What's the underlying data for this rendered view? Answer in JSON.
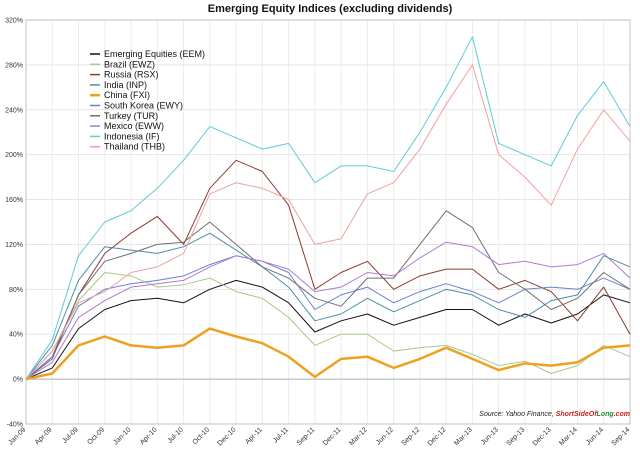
{
  "chart_data": {
    "type": "line",
    "title": "Emerging Equity Indices (excluding dividends)",
    "xlabel": "",
    "ylabel": "",
    "ylim": [
      -40,
      320
    ],
    "yticks": [
      -40,
      0,
      40,
      80,
      120,
      160,
      200,
      240,
      280,
      320
    ],
    "ytick_labels": [
      "-40%",
      "0%",
      "40%",
      "80%",
      "120%",
      "160%",
      "200%",
      "240%",
      "280%",
      "320%"
    ],
    "categories": [
      "Jan-09",
      "Apr-09",
      "Jul-09",
      "Oct-09",
      "Jan-10",
      "Apr-10",
      "Jul-10",
      "Oct-10",
      "Dec-10",
      "Apr-11",
      "Jul-11",
      "Sep-11",
      "Dec-11",
      "Mar-12",
      "Jun-12",
      "Sep-12",
      "Dec-12",
      "Mar-13",
      "Jun-13",
      "Sep-13",
      "Dec-13",
      "Mar-14",
      "Jun-14",
      "Sep-14"
    ],
    "grid": true,
    "legend_position": "top-left",
    "series": [
      {
        "name": "Emerging Equities (EEM)",
        "color": "#111111",
        "width": 1,
        "values": [
          0,
          10,
          45,
          62,
          70,
          72,
          68,
          80,
          88,
          82,
          68,
          42,
          52,
          58,
          48,
          55,
          62,
          62,
          48,
          58,
          50,
          58,
          75,
          68
        ]
      },
      {
        "name": "Brazil (EWZ)",
        "color": "#a8c98a",
        "width": 1,
        "values": [
          0,
          25,
          70,
          95,
          92,
          82,
          84,
          90,
          78,
          72,
          55,
          30,
          40,
          40,
          25,
          28,
          30,
          22,
          12,
          16,
          5,
          12,
          30,
          20
        ]
      },
      {
        "name": "Russia (RSX)",
        "color": "#8b3a2f",
        "width": 1,
        "values": [
          0,
          20,
          75,
          112,
          130,
          145,
          120,
          170,
          195,
          185,
          155,
          80,
          95,
          105,
          80,
          92,
          98,
          98,
          80,
          88,
          78,
          52,
          82,
          40
        ]
      },
      {
        "name": "India (INP)",
        "color": "#4a90a8",
        "width": 1,
        "values": [
          0,
          30,
          88,
          118,
          115,
          112,
          118,
          130,
          115,
          100,
          82,
          52,
          58,
          72,
          60,
          70,
          80,
          75,
          62,
          55,
          70,
          75,
          110,
          100
        ]
      },
      {
        "name": "China (FXI)",
        "color": "#f0a020",
        "width": 2.5,
        "values": [
          0,
          5,
          30,
          38,
          30,
          28,
          30,
          45,
          38,
          32,
          20,
          2,
          18,
          20,
          10,
          18,
          28,
          18,
          8,
          14,
          12,
          15,
          28,
          30
        ]
      },
      {
        "name": "South Korea (EWY)",
        "color": "#6a7fd0",
        "width": 1,
        "values": [
          0,
          20,
          65,
          80,
          85,
          88,
          92,
          102,
          110,
          105,
          95,
          62,
          75,
          82,
          68,
          78,
          85,
          78,
          68,
          80,
          82,
          80,
          90,
          80
        ]
      },
      {
        "name": "Turkey (TUR)",
        "color": "#707070",
        "width": 1,
        "values": [
          0,
          18,
          75,
          105,
          112,
          120,
          122,
          140,
          120,
          100,
          90,
          72,
          65,
          90,
          90,
          120,
          150,
          135,
          95,
          80,
          62,
          72,
          95,
          80
        ]
      },
      {
        "name": "Mexico (EWW)",
        "color": "#b07ad0",
        "width": 1,
        "values": [
          0,
          15,
          55,
          70,
          82,
          85,
          88,
          100,
          110,
          105,
          98,
          78,
          82,
          95,
          92,
          108,
          122,
          118,
          102,
          105,
          100,
          102,
          112,
          90
        ]
      },
      {
        "name": "Indonesia (IF)",
        "color": "#5ecbd8",
        "width": 1,
        "values": [
          0,
          35,
          110,
          140,
          150,
          170,
          195,
          225,
          215,
          205,
          210,
          175,
          190,
          190,
          185,
          220,
          260,
          305,
          210,
          200,
          190,
          235,
          265,
          225
        ]
      },
      {
        "name": "Thailand (THB)",
        "color": "#f0a0a0",
        "width": 1,
        "values": [
          0,
          25,
          68,
          78,
          95,
          100,
          112,
          165,
          175,
          170,
          160,
          120,
          125,
          165,
          175,
          205,
          245,
          280,
          200,
          180,
          155,
          205,
          240,
          212
        ]
      }
    ]
  },
  "source": {
    "prefix": "Source: Yahoo Finance, ",
    "brand_part1": "ShortSideOf",
    "brand_part2": "Long",
    "brand_part3": ".com",
    "colors": {
      "part1": "#cc1f1f",
      "part2": "#1a8a3a",
      "part3": "#cc1f1f"
    }
  }
}
